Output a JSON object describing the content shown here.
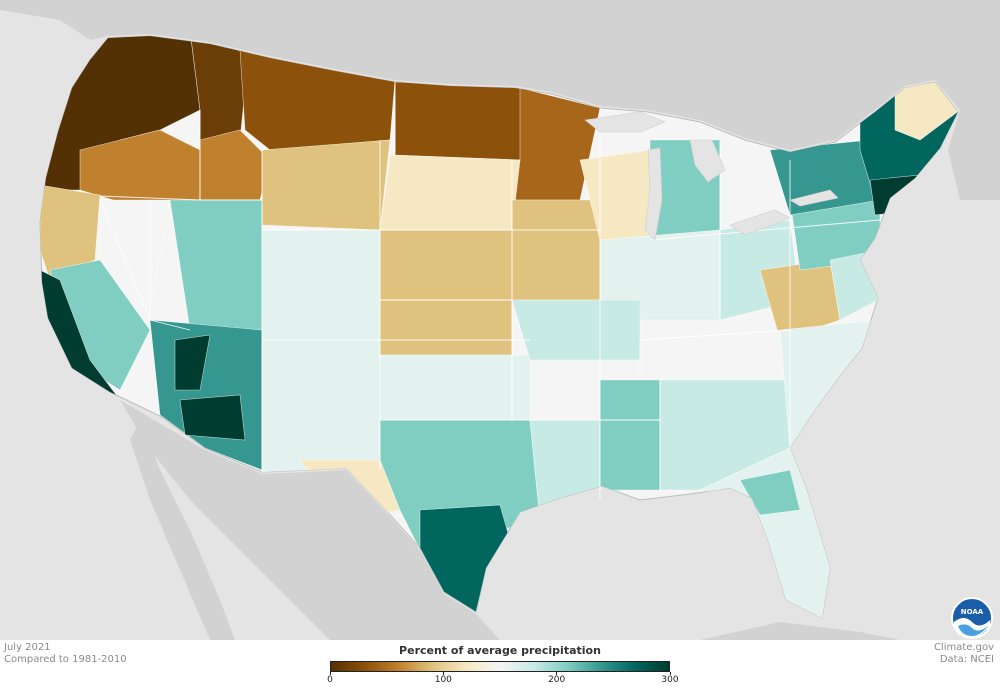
{
  "map": {
    "legend": {
      "title": "Percent of average precipitation",
      "min": 0,
      "max": 300,
      "ticks": [
        {
          "value": 0,
          "label": "0"
        },
        {
          "value": 100,
          "label": "100"
        },
        {
          "value": 200,
          "label": "200"
        },
        {
          "value": 300,
          "label": "300"
        }
      ],
      "colors": [
        "#543005",
        "#8c510a",
        "#bf812d",
        "#dfc27d",
        "#f6e8c3",
        "#f5f5f5",
        "#c7eae5",
        "#80cdc1",
        "#35978f",
        "#01665e",
        "#003c30"
      ]
    },
    "period": {
      "month": "July 2021",
      "baseline": "Compared to 1981-2010"
    },
    "credits": {
      "site": "Climate.gov",
      "source": "Data: NCEI"
    },
    "logo": {
      "icon": "noaa-logo-icon",
      "text": "NOAA"
    },
    "palette": {
      "background": "#e4e4e4",
      "land_outside": "#d2d2d2",
      "borders": "#ffffff"
    },
    "region_levels": [
      {
        "region": "Pacific Northwest",
        "percent": 15
      },
      {
        "region": "Northern Rockies",
        "percent": 40
      },
      {
        "region": "Northern Plains",
        "percent": 45
      },
      {
        "region": "Upper Midwest",
        "percent": 55
      },
      {
        "region": "Central Plains",
        "percent": 80
      },
      {
        "region": "California Coast",
        "percent": 270
      },
      {
        "region": "Nevada",
        "percent": 100
      },
      {
        "region": "Arizona",
        "percent": 250
      },
      {
        "region": "Southeast Texas",
        "percent": 260
      },
      {
        "region": "New England",
        "percent": 270
      },
      {
        "region": "Southeast",
        "percent": 150
      },
      {
        "region": "Appalachians",
        "percent": 75
      }
    ]
  }
}
